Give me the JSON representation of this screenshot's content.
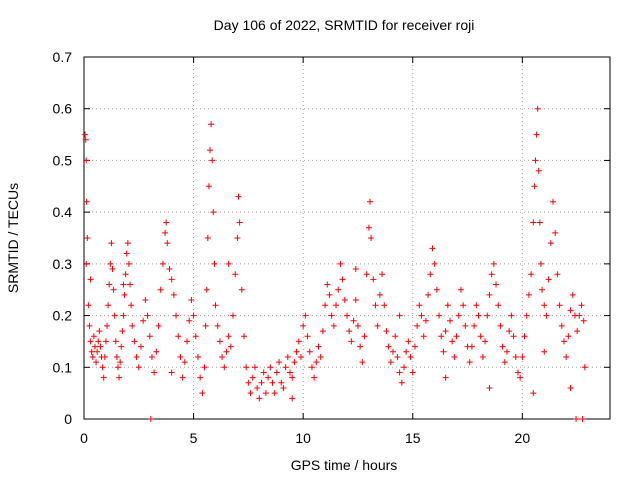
{
  "chart_data": {
    "type": "scatter",
    "title": "Day 106 of 2022, SRMTID for receiver roji",
    "xlabel": "GPS time / hours",
    "ylabel": "SRMTID / TECUs",
    "xlim": [
      0,
      24
    ],
    "ylim": [
      0,
      0.7
    ],
    "xticks": [
      0,
      5,
      10,
      15,
      20
    ],
    "yticks": [
      0,
      0.1,
      0.2,
      0.3,
      0.4,
      0.5,
      0.6,
      0.7
    ],
    "xtick_labels": [
      "0",
      "5",
      "10",
      "15",
      "20"
    ],
    "ytick_labels": [
      "0",
      "0.1",
      "0.2",
      "0.3",
      "0.4",
      "0.5",
      "0.6",
      "0.7"
    ],
    "grid": true,
    "marker": "+",
    "series": [
      {
        "name": "roji",
        "color": "#ff0000",
        "points": [
          [
            0.05,
            0.55
          ],
          [
            0.08,
            0.54
          ],
          [
            0.1,
            0.5
          ],
          [
            0.12,
            0.42
          ],
          [
            0.15,
            0.35
          ],
          [
            0.1,
            0.3
          ],
          [
            0.2,
            0.22
          ],
          [
            0.25,
            0.18
          ],
          [
            0.3,
            0.15
          ],
          [
            0.35,
            0.13
          ],
          [
            0.4,
            0.12
          ],
          [
            0.45,
            0.16
          ],
          [
            0.5,
            0.14
          ],
          [
            0.55,
            0.11
          ],
          [
            0.6,
            0.13
          ],
          [
            0.65,
            0.15
          ],
          [
            0.7,
            0.17
          ],
          [
            0.75,
            0.14
          ],
          [
            0.8,
            0.12
          ],
          [
            0.85,
            0.1
          ],
          [
            0.9,
            0.08
          ],
          [
            0.95,
            0.12
          ],
          [
            1.0,
            0.15
          ],
          [
            1.05,
            0.18
          ],
          [
            1.1,
            0.22
          ],
          [
            1.15,
            0.26
          ],
          [
            1.2,
            0.3
          ],
          [
            1.25,
            0.34
          ],
          [
            1.3,
            0.29
          ],
          [
            1.35,
            0.25
          ],
          [
            1.4,
            0.2
          ],
          [
            1.45,
            0.15
          ],
          [
            1.5,
            0.12
          ],
          [
            1.55,
            0.1
          ],
          [
            1.6,
            0.08
          ],
          [
            1.65,
            0.11
          ],
          [
            1.7,
            0.14
          ],
          [
            1.75,
            0.17
          ],
          [
            1.8,
            0.2
          ],
          [
            1.85,
            0.24
          ],
          [
            1.9,
            0.28
          ],
          [
            1.95,
            0.32
          ],
          [
            2.0,
            0.34
          ],
          [
            2.05,
            0.3
          ],
          [
            2.1,
            0.26
          ],
          [
            2.15,
            0.22
          ],
          [
            2.2,
            0.18
          ],
          [
            2.3,
            0.15
          ],
          [
            2.4,
            0.12
          ],
          [
            2.5,
            0.1
          ],
          [
            2.6,
            0.14
          ],
          [
            2.7,
            0.19
          ],
          [
            2.8,
            0.23
          ],
          [
            2.9,
            0.2
          ],
          [
            3.0,
            0.16
          ],
          [
            3.05,
            0.0
          ],
          [
            3.1,
            0.12
          ],
          [
            3.2,
            0.09
          ],
          [
            3.3,
            0.13
          ],
          [
            3.4,
            0.18
          ],
          [
            3.5,
            0.25
          ],
          [
            3.6,
            0.3
          ],
          [
            3.7,
            0.36
          ],
          [
            3.75,
            0.38
          ],
          [
            3.8,
            0.34
          ],
          [
            3.9,
            0.29
          ],
          [
            4.0,
            0.27
          ],
          [
            4.1,
            0.24
          ],
          [
            4.2,
            0.2
          ],
          [
            4.3,
            0.16
          ],
          [
            4.4,
            0.12
          ],
          [
            4.5,
            0.08
          ],
          [
            4.6,
            0.11
          ],
          [
            4.7,
            0.15
          ],
          [
            4.8,
            0.19
          ],
          [
            4.9,
            0.23
          ],
          [
            5.0,
            0.2
          ],
          [
            5.1,
            0.16
          ],
          [
            5.2,
            0.12
          ],
          [
            5.3,
            0.08
          ],
          [
            5.4,
            0.05
          ],
          [
            5.5,
            0.1
          ],
          [
            5.55,
            0.18
          ],
          [
            5.6,
            0.25
          ],
          [
            5.65,
            0.35
          ],
          [
            5.7,
            0.45
          ],
          [
            5.75,
            0.52
          ],
          [
            5.8,
            0.57
          ],
          [
            5.85,
            0.5
          ],
          [
            5.9,
            0.4
          ],
          [
            5.95,
            0.3
          ],
          [
            6.0,
            0.22
          ],
          [
            6.1,
            0.18
          ],
          [
            6.2,
            0.15
          ],
          [
            6.3,
            0.12
          ],
          [
            6.4,
            0.1
          ],
          [
            6.5,
            0.13
          ],
          [
            6.6,
            0.16
          ],
          [
            6.7,
            0.14
          ],
          [
            6.8,
            0.2
          ],
          [
            6.9,
            0.28
          ],
          [
            7.0,
            0.35
          ],
          [
            7.05,
            0.43
          ],
          [
            7.1,
            0.38
          ],
          [
            7.2,
            0.25
          ],
          [
            7.3,
            0.16
          ],
          [
            7.4,
            0.1
          ],
          [
            7.5,
            0.07
          ],
          [
            7.6,
            0.05
          ],
          [
            7.7,
            0.08
          ],
          [
            7.8,
            0.1
          ],
          [
            7.9,
            0.06
          ],
          [
            8.0,
            0.04
          ],
          [
            8.1,
            0.07
          ],
          [
            8.2,
            0.09
          ],
          [
            8.3,
            0.05
          ],
          [
            8.4,
            0.08
          ],
          [
            8.5,
            0.1
          ],
          [
            8.6,
            0.07
          ],
          [
            8.7,
            0.05
          ],
          [
            8.8,
            0.09
          ],
          [
            8.9,
            0.11
          ],
          [
            9.0,
            0.07
          ],
          [
            9.1,
            0.06
          ],
          [
            9.2,
            0.1
          ],
          [
            9.3,
            0.12
          ],
          [
            9.4,
            0.09
          ],
          [
            9.5,
            0.08
          ],
          [
            9.6,
            0.11
          ],
          [
            9.7,
            0.13
          ],
          [
            9.8,
            0.15
          ],
          [
            9.9,
            0.12
          ],
          [
            10.0,
            0.18
          ],
          [
            10.1,
            0.2
          ],
          [
            10.2,
            0.16
          ],
          [
            10.3,
            0.13
          ],
          [
            10.4,
            0.1
          ],
          [
            10.5,
            0.08
          ],
          [
            10.6,
            0.11
          ],
          [
            10.7,
            0.14
          ],
          [
            10.8,
            0.12
          ],
          [
            10.9,
            0.17
          ],
          [
            11.0,
            0.22
          ],
          [
            11.1,
            0.26
          ],
          [
            11.2,
            0.24
          ],
          [
            11.3,
            0.2
          ],
          [
            11.4,
            0.18
          ],
          [
            11.5,
            0.22
          ],
          [
            11.6,
            0.25
          ],
          [
            11.7,
            0.3
          ],
          [
            11.8,
            0.27
          ],
          [
            11.9,
            0.23
          ],
          [
            12.0,
            0.2
          ],
          [
            12.1,
            0.17
          ],
          [
            12.2,
            0.15
          ],
          [
            12.3,
            0.19
          ],
          [
            12.4,
            0.23
          ],
          [
            12.5,
            0.18
          ],
          [
            12.6,
            0.14
          ],
          [
            12.7,
            0.11
          ],
          [
            12.8,
            0.16
          ],
          [
            12.9,
            0.28
          ],
          [
            13.0,
            0.37
          ],
          [
            13.05,
            0.42
          ],
          [
            13.1,
            0.35
          ],
          [
            13.2,
            0.27
          ],
          [
            13.3,
            0.22
          ],
          [
            13.4,
            0.18
          ],
          [
            13.5,
            0.24
          ],
          [
            13.6,
            0.28
          ],
          [
            13.7,
            0.22
          ],
          [
            13.8,
            0.17
          ],
          [
            13.9,
            0.14
          ],
          [
            14.0,
            0.11
          ],
          [
            14.1,
            0.13
          ],
          [
            14.2,
            0.16
          ],
          [
            14.3,
            0.12
          ],
          [
            14.4,
            0.09
          ],
          [
            14.5,
            0.07
          ],
          [
            14.6,
            0.1
          ],
          [
            14.7,
            0.13
          ],
          [
            14.8,
            0.15
          ],
          [
            14.9,
            0.12
          ],
          [
            15.0,
            0.09
          ],
          [
            15.1,
            0.14
          ],
          [
            15.2,
            0.18
          ],
          [
            15.3,
            0.22
          ],
          [
            15.4,
            0.2
          ],
          [
            15.5,
            0.16
          ],
          [
            15.6,
            0.19
          ],
          [
            15.7,
            0.24
          ],
          [
            15.8,
            0.28
          ],
          [
            15.9,
            0.33
          ],
          [
            16.0,
            0.3
          ],
          [
            16.1,
            0.25
          ],
          [
            16.2,
            0.2
          ],
          [
            16.3,
            0.16
          ],
          [
            16.4,
            0.13
          ],
          [
            16.5,
            0.17
          ],
          [
            16.6,
            0.22
          ],
          [
            16.7,
            0.19
          ],
          [
            16.8,
            0.15
          ],
          [
            16.9,
            0.12
          ],
          [
            17.0,
            0.16
          ],
          [
            17.1,
            0.2
          ],
          [
            17.2,
            0.25
          ],
          [
            17.3,
            0.22
          ],
          [
            17.4,
            0.18
          ],
          [
            17.5,
            0.14
          ],
          [
            17.6,
            0.11
          ],
          [
            17.7,
            0.14
          ],
          [
            17.8,
            0.18
          ],
          [
            17.9,
            0.22
          ],
          [
            18.0,
            0.2
          ],
          [
            18.1,
            0.16
          ],
          [
            18.2,
            0.12
          ],
          [
            18.3,
            0.15
          ],
          [
            18.4,
            0.2
          ],
          [
            18.5,
            0.24
          ],
          [
            18.6,
            0.28
          ],
          [
            18.7,
            0.3
          ],
          [
            18.8,
            0.26
          ],
          [
            18.9,
            0.22
          ],
          [
            19.0,
            0.18
          ],
          [
            19.1,
            0.14
          ],
          [
            19.2,
            0.11
          ],
          [
            19.3,
            0.13
          ],
          [
            19.4,
            0.17
          ],
          [
            19.5,
            0.2
          ],
          [
            19.6,
            0.16
          ],
          [
            19.7,
            0.12
          ],
          [
            19.8,
            0.09
          ],
          [
            19.9,
            0.08
          ],
          [
            20.0,
            0.12
          ],
          [
            20.1,
            0.16
          ],
          [
            20.2,
            0.2
          ],
          [
            20.3,
            0.24
          ],
          [
            20.4,
            0.28
          ],
          [
            20.5,
            0.38
          ],
          [
            20.55,
            0.45
          ],
          [
            20.6,
            0.5
          ],
          [
            20.65,
            0.55
          ],
          [
            20.7,
            0.6
          ],
          [
            20.75,
            0.48
          ],
          [
            20.8,
            0.38
          ],
          [
            20.85,
            0.3
          ],
          [
            20.9,
            0.25
          ],
          [
            21.0,
            0.22
          ],
          [
            21.1,
            0.2
          ],
          [
            21.2,
            0.27
          ],
          [
            21.3,
            0.34
          ],
          [
            21.4,
            0.42
          ],
          [
            21.5,
            0.36
          ],
          [
            21.6,
            0.28
          ],
          [
            21.7,
            0.22
          ],
          [
            21.8,
            0.18
          ],
          [
            21.9,
            0.15
          ],
          [
            22.0,
            0.12
          ],
          [
            22.1,
            0.16
          ],
          [
            22.2,
            0.21
          ],
          [
            22.3,
            0.24
          ],
          [
            22.4,
            0.2
          ],
          [
            22.5,
            0.17
          ],
          [
            22.6,
            0.2
          ],
          [
            22.7,
            0.22
          ],
          [
            22.8,
            0.19
          ],
          [
            22.85,
            0.1
          ],
          [
            22.45,
            0.0
          ],
          [
            22.75,
            0.0
          ],
          [
            20.5,
            0.05
          ],
          [
            22.2,
            0.06
          ],
          [
            0.3,
            0.27
          ],
          [
            1.8,
            0.26
          ],
          [
            4.0,
            0.09
          ],
          [
            6.6,
            0.3
          ],
          [
            9.5,
            0.04
          ],
          [
            12.4,
            0.29
          ],
          [
            14.4,
            0.2
          ],
          [
            16.5,
            0.08
          ],
          [
            18.5,
            0.06
          ],
          [
            21.0,
            0.13
          ]
        ]
      }
    ]
  }
}
